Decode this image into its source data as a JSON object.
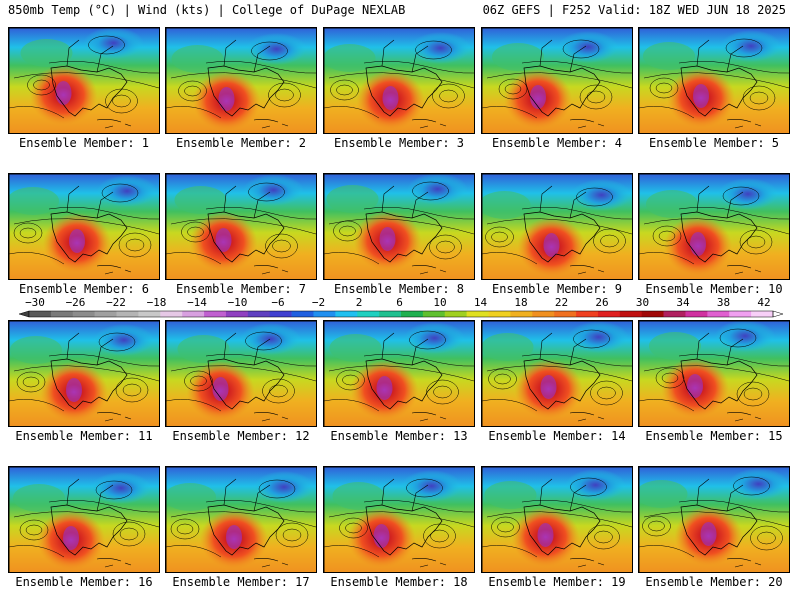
{
  "header": {
    "left": "850mb Temp (°C) | Wind (kts) | College of DuPage NEXLAB",
    "right": "06Z GEFS | F252 Valid: 18Z WED JUN 18 2025"
  },
  "panels": [
    {
      "label": "Ensemble Member: 1"
    },
    {
      "label": "Ensemble Member: 2"
    },
    {
      "label": "Ensemble Member: 3"
    },
    {
      "label": "Ensemble Member: 4"
    },
    {
      "label": "Ensemble Member: 5"
    },
    {
      "label": "Ensemble Member: 6"
    },
    {
      "label": "Ensemble Member: 7"
    },
    {
      "label": "Ensemble Member: 8"
    },
    {
      "label": "Ensemble Member: 9"
    },
    {
      "label": "Ensemble Member: 10"
    },
    {
      "label": "Ensemble Member: 11"
    },
    {
      "label": "Ensemble Member: 12"
    },
    {
      "label": "Ensemble Member: 13"
    },
    {
      "label": "Ensemble Member: 14"
    },
    {
      "label": "Ensemble Member: 15"
    },
    {
      "label": "Ensemble Member: 16"
    },
    {
      "label": "Ensemble Member: 17"
    },
    {
      "label": "Ensemble Member: 18"
    },
    {
      "label": "Ensemble Member: 19"
    },
    {
      "label": "Ensemble Member: 20"
    }
  ],
  "colorbar": {
    "ticks": [
      "−30",
      "−26",
      "−22",
      "−18",
      "−14",
      "−10",
      "−6",
      "−2",
      "2",
      "6",
      "10",
      "14",
      "18",
      "22",
      "26",
      "30",
      "34",
      "38",
      "42"
    ],
    "colors": [
      "#5a5a5a",
      "#7a7a7a",
      "#8c8c8c",
      "#a0a0a0",
      "#b4b4b4",
      "#c8c8c8",
      "#e6c8e6",
      "#d8a0e0",
      "#c060d0",
      "#9040c0",
      "#6040c0",
      "#4040d0",
      "#2060e0",
      "#2090f0",
      "#20c0f0",
      "#20d0c0",
      "#20c090",
      "#20b050",
      "#60c030",
      "#a0d020",
      "#e0e020",
      "#f0d020",
      "#f0b020",
      "#f09020",
      "#f07020",
      "#f04020",
      "#e02020",
      "#c01010",
      "#a00808",
      "#b02060",
      "#d030a0",
      "#e060d0",
      "#f0a0f0",
      "#f8d0f8"
    ]
  }
}
